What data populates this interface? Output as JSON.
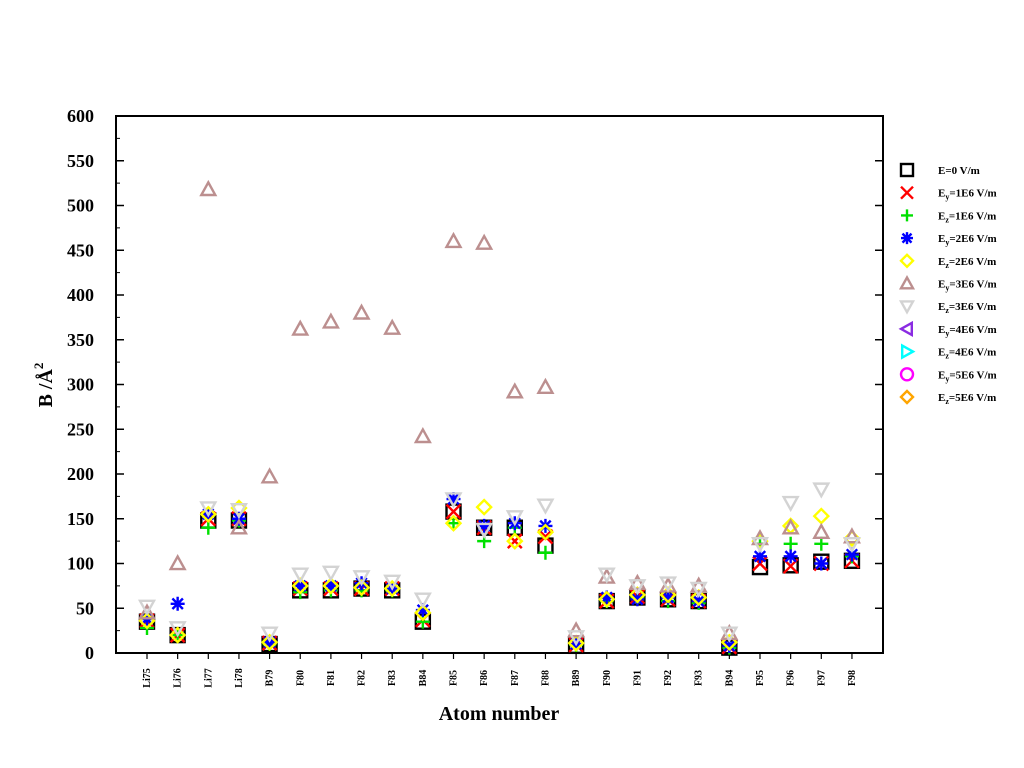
{
  "chart_data": {
    "type": "scatter",
    "xlabel": "Atom number",
    "ylabel_main": "B /Å",
    "ylabel_sup": "2",
    "ylim": [
      0,
      600
    ],
    "yticks": [
      0,
      50,
      100,
      150,
      200,
      250,
      300,
      350,
      400,
      450,
      500,
      550,
      600
    ],
    "grid": false,
    "legend_position": "right",
    "categories": [
      "Li75",
      "Li76",
      "Li77",
      "Li78",
      "B79",
      "F80",
      "F81",
      "F82",
      "F83",
      "B84",
      "F85",
      "F86",
      "F87",
      "F88",
      "B89",
      "F90",
      "F91",
      "F92",
      "F93",
      "B94",
      "F95",
      "F96",
      "F97",
      "F98"
    ],
    "series": [
      {
        "legend_base": "E",
        "legend_sub": "",
        "legend_tail": "=0 V/m",
        "marker": "square",
        "color": "#000000",
        "values": [
          35,
          20,
          148,
          148,
          10,
          70,
          70,
          72,
          70,
          35,
          158,
          140,
          140,
          120,
          8,
          58,
          62,
          60,
          58,
          6,
          96,
          98,
          102,
          103
        ]
      },
      {
        "legend_base": "E",
        "legend_sub": "y",
        "legend_tail": "=1E6 V/m",
        "marker": "x",
        "color": "#ff0000",
        "values": [
          36,
          20,
          150,
          150,
          11,
          72,
          72,
          72,
          72,
          37,
          158,
          140,
          125,
          130,
          9,
          58,
          63,
          60,
          58,
          7,
          100,
          97,
          100,
          103
        ]
      },
      {
        "legend_base": "E",
        "legend_sub": "z",
        "legend_tail": "=1E6 V/m",
        "marker": "plus",
        "color": "#00e000",
        "values": [
          28,
          20,
          140,
          148,
          10,
          68,
          70,
          70,
          70,
          35,
          145,
          125,
          140,
          112,
          9,
          58,
          62,
          58,
          56,
          6,
          122,
          122,
          122,
          108
        ]
      },
      {
        "legend_base": "E",
        "legend_sub": "y",
        "legend_tail": "=2E6 V/m",
        "marker": "asterisk",
        "color": "#0000ff",
        "values": [
          38,
          55,
          155,
          150,
          12,
          75,
          75,
          78,
          72,
          48,
          172,
          142,
          145,
          142,
          10,
          62,
          60,
          62,
          58,
          8,
          108,
          108,
          100,
          110
        ]
      },
      {
        "legend_base": "E",
        "legend_sub": "z",
        "legend_tail": "=2E6 V/m",
        "marker": "diamond",
        "color": "#ffff00",
        "values": [
          36,
          20,
          155,
          162,
          12,
          75,
          75,
          73,
          72,
          45,
          145,
          163,
          125,
          135,
          11,
          60,
          65,
          65,
          62,
          12,
          125,
          142,
          153,
          128
        ]
      },
      {
        "legend_base": "E",
        "legend_sub": "y",
        "legend_tail": "=3E6 V/m",
        "marker": "triangle-up",
        "color": "#bc8f8f",
        "values": [
          45,
          100,
          518,
          140,
          197,
          362,
          370,
          380,
          363,
          242,
          460,
          458,
          292,
          297,
          25,
          85,
          78,
          75,
          75,
          22,
          128,
          140,
          135,
          130
        ]
      },
      {
        "legend_base": "E",
        "legend_sub": "z",
        "legend_tail": "=3E6 V/m",
        "marker": "triangle-down",
        "color": "#d3d3d3",
        "values": [
          52,
          28,
          162,
          160,
          22,
          88,
          90,
          85,
          80,
          60,
          172,
          138,
          152,
          165,
          18,
          88,
          75,
          78,
          72,
          22,
          122,
          168,
          183,
          122
        ]
      },
      {
        "legend_base": "E",
        "legend_sub": "y",
        "legend_tail": "=4E6 V/m",
        "marker": "triangle-left",
        "color": "#8a2be2",
        "values": []
      },
      {
        "legend_base": "E",
        "legend_sub": "z",
        "legend_tail": "=4E6 V/m",
        "marker": "triangle-right",
        "color": "#00ffff",
        "values": []
      },
      {
        "legend_base": "E",
        "legend_sub": "y",
        "legend_tail": "=5E6 V/m",
        "marker": "circle",
        "color": "#ff00ff",
        "values": []
      },
      {
        "legend_base": "E",
        "legend_sub": "z",
        "legend_tail": "=5E6 V/m",
        "marker": "diamond",
        "color": "#ffa500",
        "values": []
      }
    ]
  }
}
